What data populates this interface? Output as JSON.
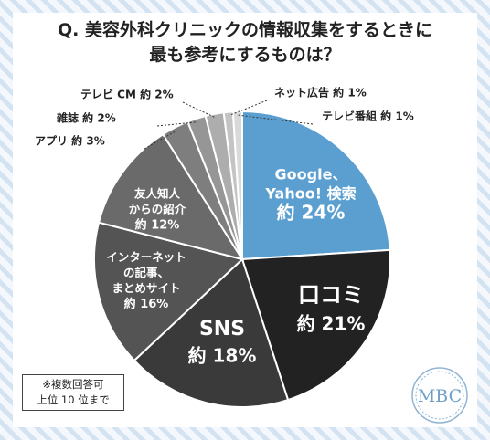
{
  "title": {
    "line1": "Q. 美容外科クリニックの情報収集をするときに",
    "line2": "最も参考にするものは？"
  },
  "note": {
    "line1": "※複数回答可",
    "line2": "上位 10 位まで"
  },
  "logo_text": "MBC",
  "colors": {
    "google": "#5b9fd1",
    "kuchikomi": "#222222",
    "sns": "#3a3a3a",
    "internet": "#545454",
    "friends": "#6a6a6a",
    "app": "#7e7e7e",
    "zasshi": "#969696",
    "tvcm": "#adadad",
    "netad": "#c4c4c4",
    "tvprog": "#d9d9d9"
  },
  "chart_data": {
    "type": "pie",
    "title": "Q. 美容外科クリニックの情報収集をするときに最も参考にするものは？",
    "unit": "%",
    "slices": [
      {
        "key": "google",
        "label": [
          "Google、",
          "Yahoo! 検索"
        ],
        "value": 24,
        "value_text": "約 24%"
      },
      {
        "key": "kuchikomi",
        "label": [
          "口コミ"
        ],
        "value": 21,
        "value_text": "約 21%"
      },
      {
        "key": "sns",
        "label": [
          "SNS"
        ],
        "value": 18,
        "value_text": "約 18%"
      },
      {
        "key": "internet",
        "label": [
          "インターネット",
          "の記事、",
          "まとめサイト"
        ],
        "value": 16,
        "value_text": "約 16%"
      },
      {
        "key": "friends",
        "label": [
          "友人知人",
          "からの紹介"
        ],
        "value": 12,
        "value_text": "約 12%"
      },
      {
        "key": "app",
        "label": [
          "アプリ"
        ],
        "value": 3,
        "value_text": "約 3%"
      },
      {
        "key": "zasshi",
        "label": [
          "雑誌"
        ],
        "value": 2,
        "value_text": "約 2%"
      },
      {
        "key": "tvcm",
        "label": [
          "テレビ CM"
        ],
        "value": 2,
        "value_text": "約 2%"
      },
      {
        "key": "netad",
        "label": [
          "ネット広告"
        ],
        "value": 1,
        "value_text": "約 1%"
      },
      {
        "key": "tvprog",
        "label": [
          "テレビ番組"
        ],
        "value": 1,
        "value_text": "約 1%"
      }
    ]
  }
}
